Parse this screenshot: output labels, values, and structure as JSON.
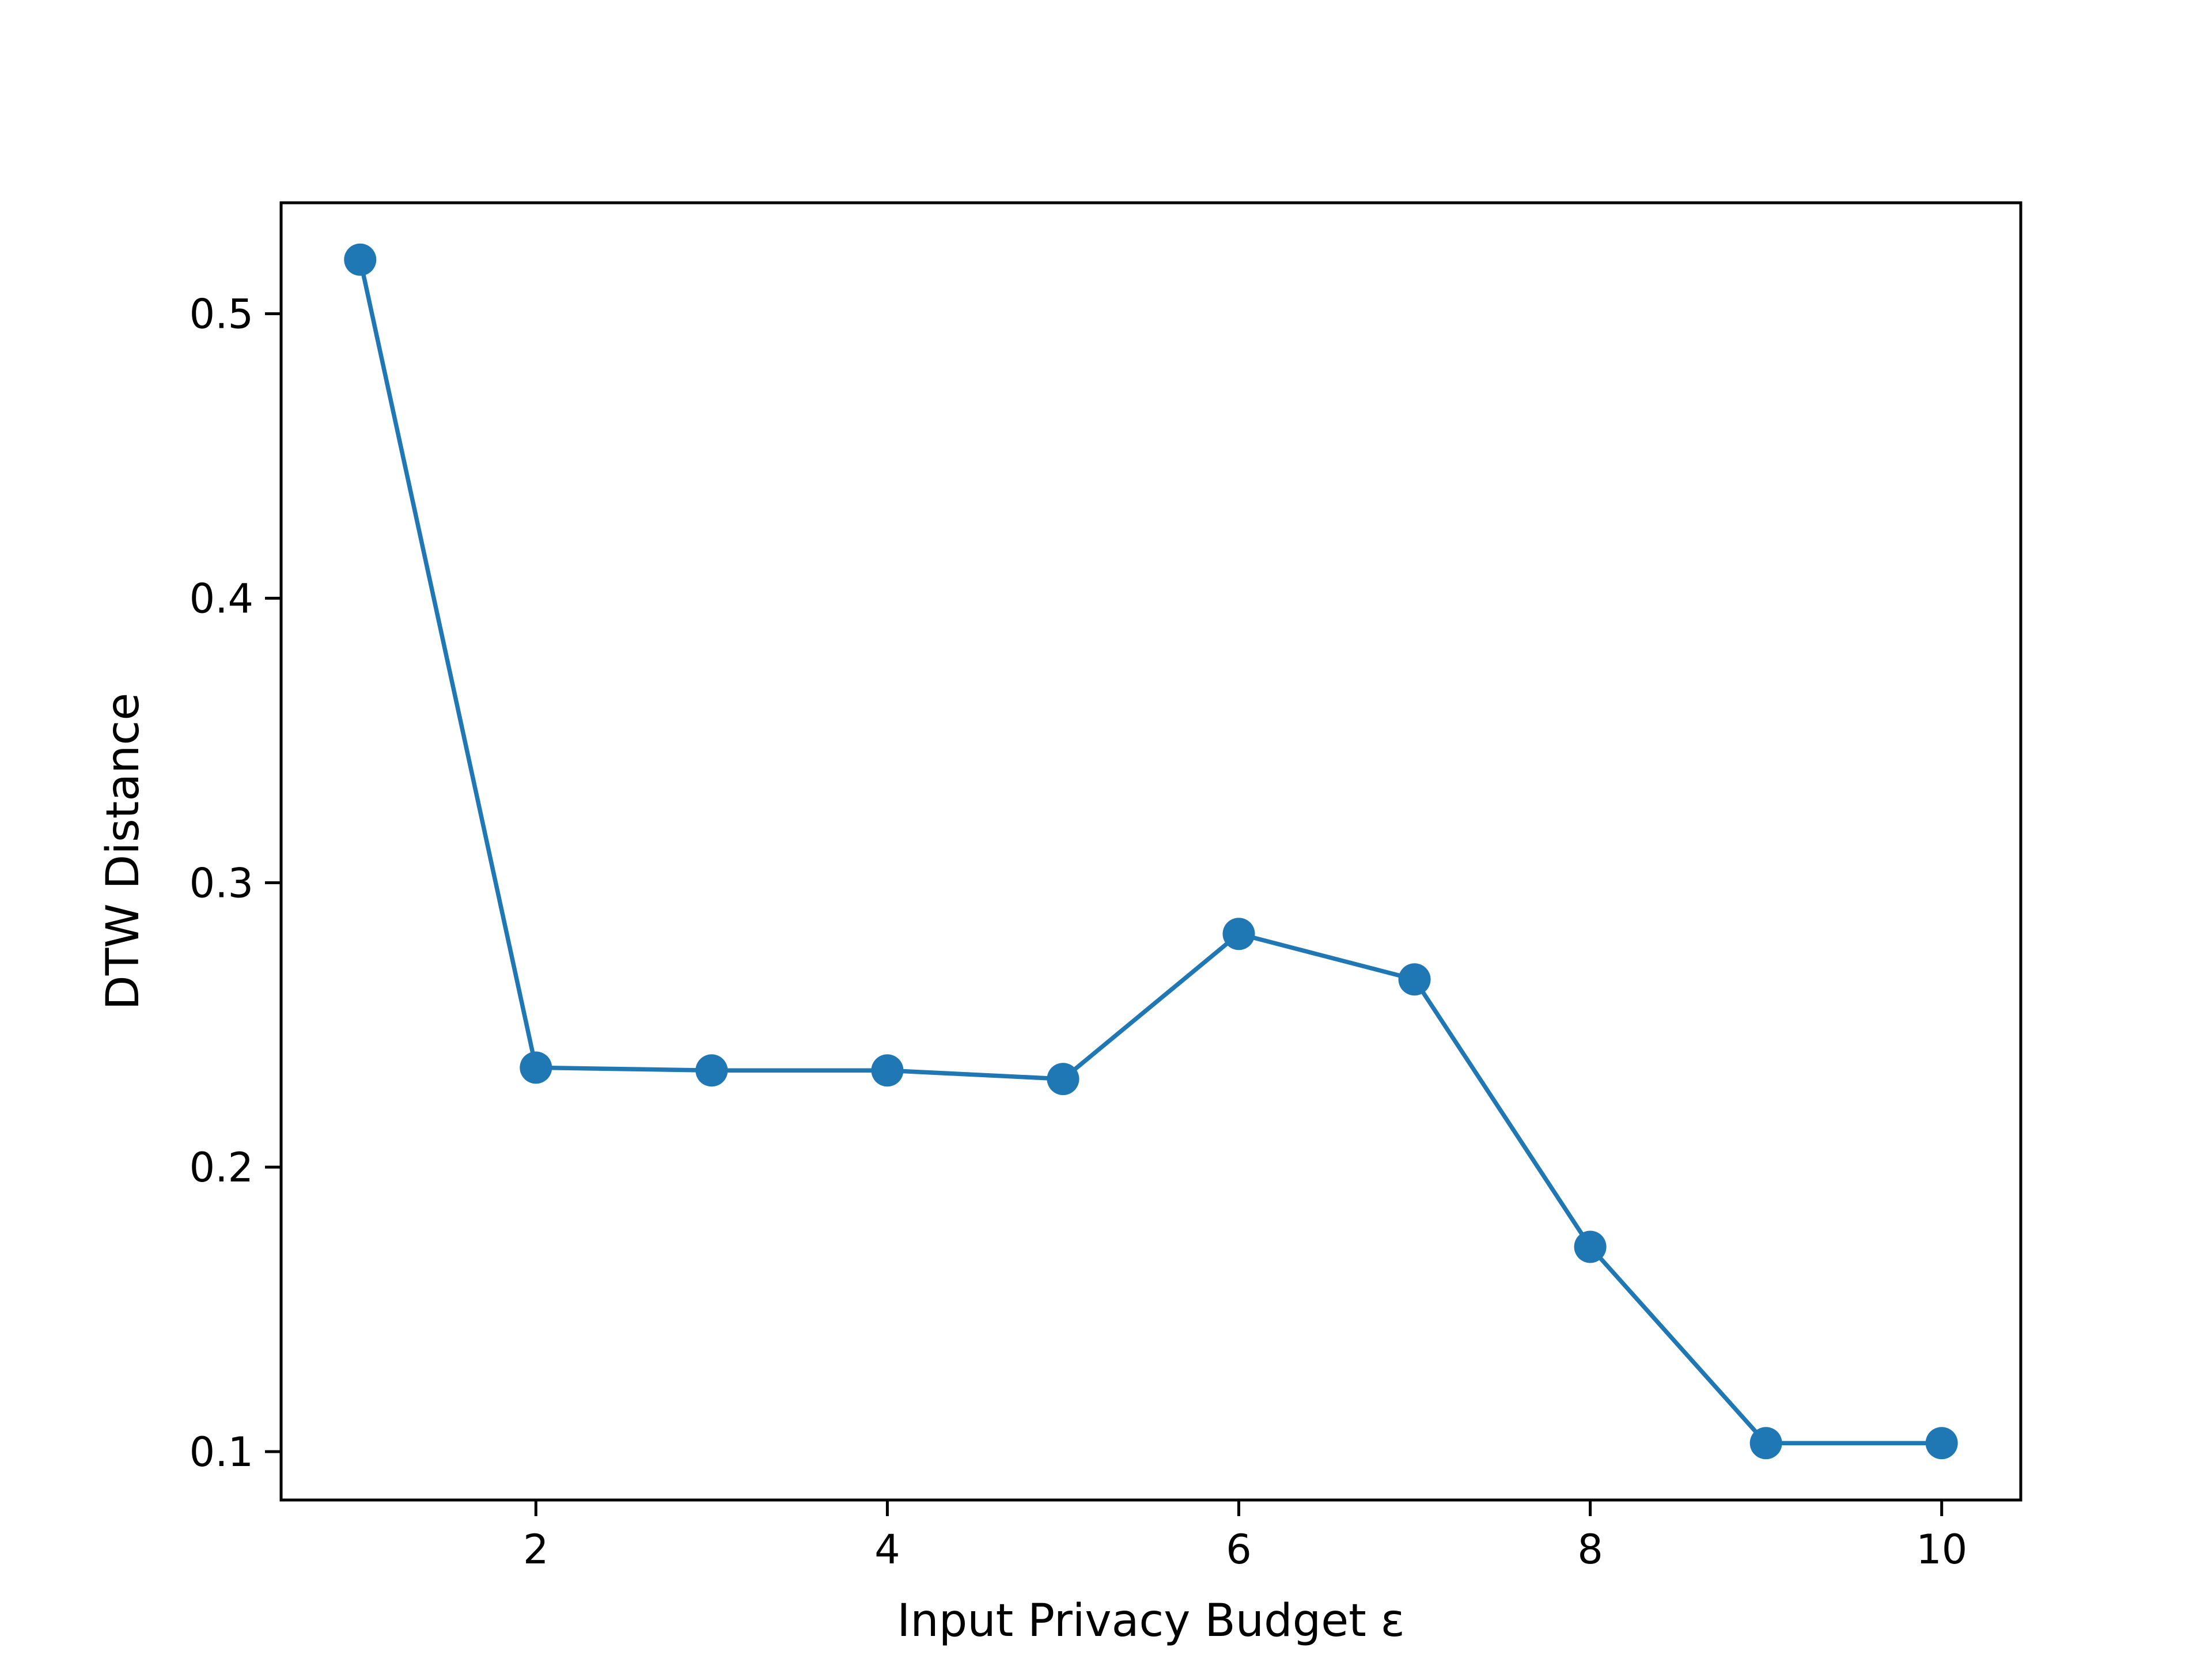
{
  "chart_data": {
    "type": "line",
    "title": "",
    "xlabel": "Input Privacy Budget ε",
    "ylabel": "DTW Distance",
    "xlim": [
      0.55,
      10.45
    ],
    "ylim": [
      0.083,
      0.539
    ],
    "x_ticks": [
      2,
      4,
      6,
      8,
      10
    ],
    "x_tick_labels": [
      "2",
      "4",
      "6",
      "8",
      "10"
    ],
    "y_ticks": [
      0.1,
      0.2,
      0.3,
      0.4,
      0.5
    ],
    "y_tick_labels": [
      "0.1",
      "0.2",
      "0.3",
      "0.4",
      "0.5"
    ],
    "grid": false,
    "legend": "none",
    "series": [
      {
        "color": "#1f77b4",
        "marker": "circle",
        "x": [
          1,
          2,
          3,
          4,
          5,
          6,
          7,
          8,
          9,
          10
        ],
        "y": [
          0.519,
          0.235,
          0.234,
          0.234,
          0.231,
          0.282,
          0.266,
          0.172,
          0.103,
          0.103
        ]
      }
    ]
  }
}
